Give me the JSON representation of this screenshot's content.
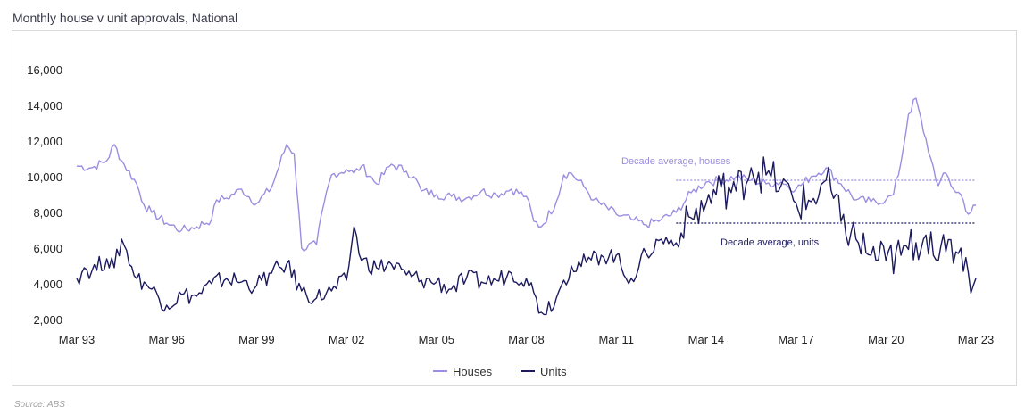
{
  "title": "Monthly house v unit approvals, National",
  "source": "Source: ABS",
  "colors": {
    "houses": "#9b8ee0",
    "units": "#1c1a5e"
  },
  "chart_data": {
    "type": "line",
    "title": "Monthly house v unit approvals, National",
    "x_tick_labels": [
      "Mar 93",
      "Mar 96",
      "Mar 99",
      "Mar 02",
      "Mar 05",
      "Mar 08",
      "Mar 11",
      "Mar 14",
      "Mar 17",
      "Mar 20",
      "Mar 23"
    ],
    "x_range": [
      "1993-03",
      "2023-03"
    ],
    "y_ticks": [
      2000,
      4000,
      6000,
      8000,
      10000,
      12000,
      14000,
      16000
    ],
    "y_tick_labels": [
      "2,000",
      "4,000",
      "6,000",
      "8,000",
      "10,000",
      "12,000",
      "14,000",
      "16,000"
    ],
    "ylim": [
      2000,
      16000
    ],
    "grid": false,
    "legend_position": "bottom-center",
    "series": [
      {
        "name": "Houses",
        "points": [
          [
            "1993-03",
            10600
          ],
          [
            "1993-09",
            10500
          ],
          [
            "1994-03",
            10900
          ],
          [
            "1994-06",
            11800
          ],
          [
            "1994-09",
            10900
          ],
          [
            "1995-03",
            9600
          ],
          [
            "1995-06",
            8400
          ],
          [
            "1995-09",
            8000
          ],
          [
            "1996-03",
            7400
          ],
          [
            "1996-09",
            7000
          ],
          [
            "1997-03",
            7200
          ],
          [
            "1997-09",
            7600
          ],
          [
            "1997-11",
            8700
          ],
          [
            "1998-03",
            8800
          ],
          [
            "1998-09",
            9300
          ],
          [
            "1999-03",
            8500
          ],
          [
            "1999-09",
            9400
          ],
          [
            "2000-03",
            11800
          ],
          [
            "2000-06",
            11300
          ],
          [
            "2000-09",
            6000
          ],
          [
            "2001-03",
            6200
          ],
          [
            "2001-06",
            8500
          ],
          [
            "2001-09",
            10100
          ],
          [
            "2002-03",
            10400
          ],
          [
            "2002-06",
            10200
          ],
          [
            "2002-09",
            10600
          ],
          [
            "2003-03",
            9600
          ],
          [
            "2003-09",
            10700
          ],
          [
            "2004-03",
            10300
          ],
          [
            "2004-06",
            10000
          ],
          [
            "2004-09",
            9200
          ],
          [
            "2005-03",
            9000
          ],
          [
            "2005-09",
            8900
          ],
          [
            "2006-03",
            8800
          ],
          [
            "2006-09",
            9200
          ],
          [
            "2007-03",
            9000
          ],
          [
            "2007-09",
            9300
          ],
          [
            "2008-03",
            8900
          ],
          [
            "2008-06",
            7500
          ],
          [
            "2008-09",
            7200
          ],
          [
            "2009-03",
            8600
          ],
          [
            "2009-06",
            10100
          ],
          [
            "2009-09",
            10200
          ],
          [
            "2010-03",
            9300
          ],
          [
            "2010-06",
            8700
          ],
          [
            "2011-03",
            7900
          ],
          [
            "2011-09",
            7600
          ],
          [
            "2012-03",
            7300
          ],
          [
            "2012-09",
            7600
          ],
          [
            "2013-03",
            8000
          ],
          [
            "2013-09",
            9100
          ],
          [
            "2014-03",
            9700
          ],
          [
            "2014-09",
            9800
          ],
          [
            "2015-03",
            10000
          ],
          [
            "2015-09",
            9800
          ],
          [
            "2016-03",
            9600
          ],
          [
            "2016-09",
            9700
          ],
          [
            "2017-03",
            9300
          ],
          [
            "2017-09",
            10000
          ],
          [
            "2018-03",
            10500
          ],
          [
            "2018-09",
            9600
          ],
          [
            "2019-03",
            8700
          ],
          [
            "2019-09",
            8600
          ],
          [
            "2020-03",
            8700
          ],
          [
            "2020-06",
            9000
          ],
          [
            "2020-09",
            10800
          ],
          [
            "2020-12",
            13500
          ],
          [
            "2021-03",
            14400
          ],
          [
            "2021-06",
            12500
          ],
          [
            "2021-09",
            11000
          ],
          [
            "2021-12",
            9500
          ],
          [
            "2022-03",
            10200
          ],
          [
            "2022-06",
            9300
          ],
          [
            "2022-09",
            9000
          ],
          [
            "2022-12",
            7900
          ],
          [
            "2023-03",
            8400
          ]
        ]
      },
      {
        "name": "Units",
        "points": [
          [
            "1993-03",
            4300
          ],
          [
            "1993-06",
            4900
          ],
          [
            "1993-09",
            4700
          ],
          [
            "1994-03",
            5400
          ],
          [
            "1994-06",
            4900
          ],
          [
            "1994-09",
            6500
          ],
          [
            "1995-03",
            4300
          ],
          [
            "1995-06",
            4100
          ],
          [
            "1995-09",
            3700
          ],
          [
            "1996-03",
            2800
          ],
          [
            "1996-09",
            3400
          ],
          [
            "1997-03",
            3300
          ],
          [
            "1997-09",
            4000
          ],
          [
            "1998-03",
            4300
          ],
          [
            "1998-09",
            4100
          ],
          [
            "1999-03",
            3900
          ],
          [
            "1999-09",
            4600
          ],
          [
            "2000-03",
            5100
          ],
          [
            "2000-09",
            3600
          ],
          [
            "2001-03",
            3200
          ],
          [
            "2001-09",
            3600
          ],
          [
            "2002-03",
            4200
          ],
          [
            "2002-06",
            7200
          ],
          [
            "2002-09",
            5300
          ],
          [
            "2003-03",
            4900
          ],
          [
            "2003-09",
            5100
          ],
          [
            "2004-03",
            4500
          ],
          [
            "2004-09",
            4200
          ],
          [
            "2005-03",
            4100
          ],
          [
            "2005-09",
            3700
          ],
          [
            "2006-03",
            4300
          ],
          [
            "2006-09",
            4100
          ],
          [
            "2007-03",
            4200
          ],
          [
            "2007-09",
            4600
          ],
          [
            "2008-03",
            4300
          ],
          [
            "2008-06",
            3500
          ],
          [
            "2008-09",
            2400
          ],
          [
            "2009-03",
            3200
          ],
          [
            "2009-06",
            4200
          ],
          [
            "2009-09",
            5000
          ],
          [
            "2010-03",
            5200
          ],
          [
            "2010-09",
            5600
          ],
          [
            "2011-03",
            5600
          ],
          [
            "2011-06",
            4500
          ],
          [
            "2011-09",
            4300
          ],
          [
            "2012-03",
            5700
          ],
          [
            "2012-09",
            6500
          ],
          [
            "2013-03",
            6300
          ],
          [
            "2013-09",
            7700
          ],
          [
            "2014-03",
            8500
          ],
          [
            "2014-09",
            9400
          ],
          [
            "2015-03",
            9200
          ],
          [
            "2015-09",
            10500
          ],
          [
            "2016-03",
            10100
          ],
          [
            "2016-09",
            9500
          ],
          [
            "2017-03",
            8500
          ],
          [
            "2017-09",
            8600
          ],
          [
            "2018-03",
            9800
          ],
          [
            "2018-09",
            7500
          ],
          [
            "2019-03",
            6500
          ],
          [
            "2019-09",
            5600
          ],
          [
            "2020-03",
            5300
          ],
          [
            "2020-09",
            5600
          ],
          [
            "2021-03",
            6300
          ],
          [
            "2021-06",
            6500
          ],
          [
            "2021-09",
            6900
          ],
          [
            "2021-12",
            5300
          ],
          [
            "2022-03",
            5800
          ],
          [
            "2022-09",
            6000
          ],
          [
            "2022-12",
            4600
          ],
          [
            "2023-03",
            4300
          ]
        ]
      }
    ],
    "annotations": [
      {
        "text": "Decade average, houses",
        "value": 9800,
        "from": "2013-03",
        "to": "2023-03"
      },
      {
        "text": "Decade average, units",
        "value": 7400,
        "from": "2013-03",
        "to": "2023-03"
      }
    ]
  }
}
